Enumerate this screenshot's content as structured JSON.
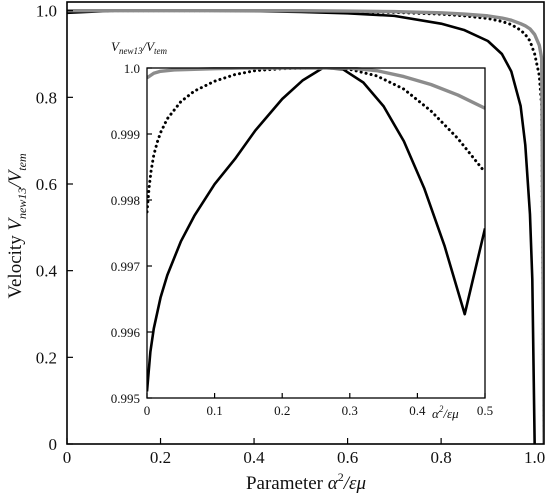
{
  "chart_data": [
    {
      "type": "line",
      "role": "main",
      "xlim": [
        0,
        1.02
      ],
      "ylim": [
        0,
        1.02
      ],
      "x_ticks": [
        "0",
        "0.2",
        "0.4",
        "0.6",
        "0.8",
        "1.0"
      ],
      "x_tick_values": [
        0,
        0.2,
        0.4,
        0.6,
        0.8,
        1.0
      ],
      "y_ticks": [
        "0",
        "0.2",
        "0.4",
        "0.6",
        "0.8",
        "1.0"
      ],
      "y_tick_values": [
        0,
        0.2,
        0.4,
        0.6,
        0.8,
        1.0
      ],
      "xlabel": {
        "prefix": "Parameter ",
        "math_main": "α",
        "math_sup": "2",
        "math_rest": "/εμ"
      },
      "ylabel": {
        "prefix": "Velocity ",
        "math_main": "V",
        "sub1": "new13",
        "mid": "/V",
        "sub2": "tem"
      },
      "grid": false,
      "series": [
        {
          "style": "solid-black",
          "color": "#000000",
          "x": [
            0,
            0.1,
            0.2,
            0.3,
            0.4,
            0.5,
            0.6,
            0.7,
            0.8,
            0.85,
            0.9,
            0.93,
            0.95,
            0.97,
            0.98,
            0.99,
            0.995,
            1.0
          ],
          "y": [
            0.995,
            1.0,
            1.0,
            1.0,
            0.999,
            0.997,
            0.994,
            0.988,
            0.97,
            0.955,
            0.93,
            0.9,
            0.86,
            0.78,
            0.69,
            0.53,
            0.38,
            0.0
          ]
        },
        {
          "style": "dotted-black",
          "color": "#000000",
          "x": [
            0,
            0.1,
            0.2,
            0.3,
            0.4,
            0.5,
            0.6,
            0.7,
            0.8,
            0.85,
            0.9,
            0.93,
            0.95,
            0.97,
            0.98,
            0.99,
            1.0,
            1.01,
            1.015,
            1.02
          ],
          "y": [
            0.998,
            1.0,
            1.0,
            1.0,
            1.0,
            0.999,
            0.998,
            0.996,
            0.992,
            0.988,
            0.982,
            0.975,
            0.968,
            0.955,
            0.945,
            0.93,
            0.9,
            0.85,
            0.78,
            0.0
          ]
        },
        {
          "style": "solid-gray",
          "color": "#8c8c8c",
          "x": [
            0,
            0.1,
            0.2,
            0.3,
            0.4,
            0.5,
            0.6,
            0.7,
            0.8,
            0.85,
            0.9,
            0.93,
            0.95,
            0.97,
            0.98,
            0.99,
            1.0,
            1.01,
            1.015,
            1.02
          ],
          "y": [
            1.0,
            1.0,
            1.0,
            1.0,
            1.0,
            1.0,
            0.999,
            0.998,
            0.995,
            0.992,
            0.988,
            0.983,
            0.978,
            0.97,
            0.965,
            0.958,
            0.945,
            0.92,
            0.89,
            0.0
          ]
        }
      ]
    },
    {
      "type": "line",
      "role": "inset",
      "xlim": [
        0,
        0.5
      ],
      "ylim": [
        0.995,
        1.0
      ],
      "x_ticks": [
        "0",
        "0.1",
        "0.2",
        "0.3",
        "0.4",
        "0.5"
      ],
      "x_tick_values": [
        0,
        0.1,
        0.2,
        0.3,
        0.4,
        0.5
      ],
      "y_ticks": [
        "0.995",
        "0.996",
        "0.997",
        "0.998",
        "0.999",
        "1.0"
      ],
      "y_tick_values": [
        0.995,
        0.996,
        0.997,
        0.998,
        0.999,
        1.0
      ],
      "xlabel": {
        "math_main": "α",
        "math_sup": "2",
        "math_rest": "/εμ"
      },
      "ylabel": {
        "math_main": "V",
        "sub1": "new13",
        "mid": "/V",
        "sub2": "tem"
      },
      "grid": false,
      "series": [
        {
          "style": "solid-black",
          "color": "#000000",
          "x": [
            0,
            0.005,
            0.01,
            0.02,
            0.03,
            0.05,
            0.07,
            0.1,
            0.13,
            0.16,
            0.2,
            0.23,
            0.26,
            0.29,
            0.32,
            0.35,
            0.38,
            0.41,
            0.44,
            0.47,
            0.5
          ],
          "y": [
            0.9951,
            0.9957,
            0.99605,
            0.99652,
            0.99686,
            0.99737,
            0.99776,
            0.99824,
            0.99862,
            0.99905,
            0.99953,
            0.99981,
            1.0,
            0.99998,
            0.99978,
            0.99942,
            0.99889,
            0.99818,
            0.99731,
            0.99627,
            0.99757
          ]
        },
        {
          "style": "dotted-black",
          "color": "#000000",
          "x": [
            0,
            0.003,
            0.006,
            0.01,
            0.015,
            0.02,
            0.03,
            0.05,
            0.07,
            0.1,
            0.13,
            0.16,
            0.2,
            0.24,
            0.27,
            0.3,
            0.34,
            0.38,
            0.42,
            0.46,
            0.5
          ],
          "y": [
            0.99782,
            0.99818,
            0.99844,
            0.99868,
            0.99887,
            0.99902,
            0.99923,
            0.99949,
            0.99965,
            0.9998,
            0.9999,
            0.99996,
            0.99999,
            1.0,
            1.0,
            0.99998,
            0.99988,
            0.99968,
            0.99935,
            0.99893,
            0.99842
          ]
        },
        {
          "style": "solid-gray",
          "color": "#8c8c8c",
          "x": [
            0,
            0.01,
            0.02,
            0.04,
            0.07,
            0.1,
            0.14,
            0.18,
            0.22,
            0.26,
            0.3,
            0.34,
            0.38,
            0.42,
            0.46,
            0.5
          ],
          "y": [
            0.99985,
            0.99992,
            0.99995,
            0.99997,
            0.99998,
            0.99999,
            1.0,
            1.0,
            1.0,
            1.0,
            1.0,
            0.99996,
            0.99987,
            0.99975,
            0.99959,
            0.99939
          ]
        }
      ]
    }
  ]
}
